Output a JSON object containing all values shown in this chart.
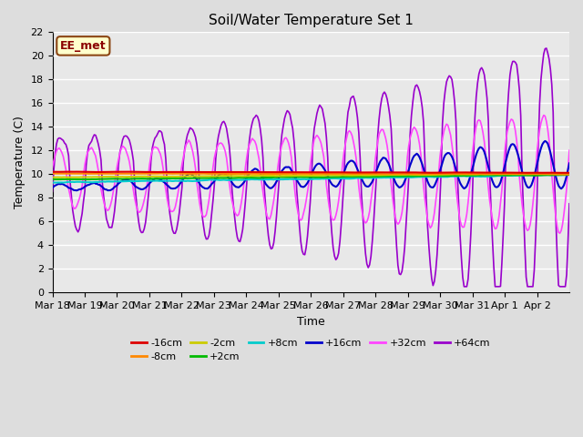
{
  "title": "Soil/Water Temperature Set 1",
  "xlabel": "Time",
  "ylabel": "Temperature (C)",
  "ylim": [
    0,
    22
  ],
  "yticks": [
    0,
    2,
    4,
    6,
    8,
    10,
    12,
    14,
    16,
    18,
    20,
    22
  ],
  "bg_color": "#dddddd",
  "plot_bg_color": "#e8e8e8",
  "annotation_text": "EE_met",
  "annotation_bg": "#ffffcc",
  "annotation_border": "#8b4513",
  "series": {
    "-16cm": {
      "color": "#dd0000",
      "lw": 1.5
    },
    "-8cm": {
      "color": "#ff8800",
      "lw": 1.5
    },
    "-2cm": {
      "color": "#cccc00",
      "lw": 1.5
    },
    "+2cm": {
      "color": "#00bb00",
      "lw": 1.5
    },
    "+8cm": {
      "color": "#00cccc",
      "lw": 1.5
    },
    "+16cm": {
      "color": "#0000cc",
      "lw": 1.5
    },
    "+32cm": {
      "color": "#ff44ff",
      "lw": 1.2
    },
    "+64cm": {
      "color": "#9900cc",
      "lw": 1.2
    }
  },
  "xtick_labels": [
    "Mar 18",
    "Mar 19",
    "Mar 20",
    "Mar 21",
    "Mar 22",
    "Mar 23",
    "Mar 24",
    "Mar 25",
    "Mar 26",
    "Mar 27",
    "Mar 28",
    "Mar 29",
    "Mar 30",
    "Mar 31",
    "Apr 1",
    "Apr 2"
  ],
  "figsize": [
    6.4,
    4.8
  ],
  "dpi": 100
}
